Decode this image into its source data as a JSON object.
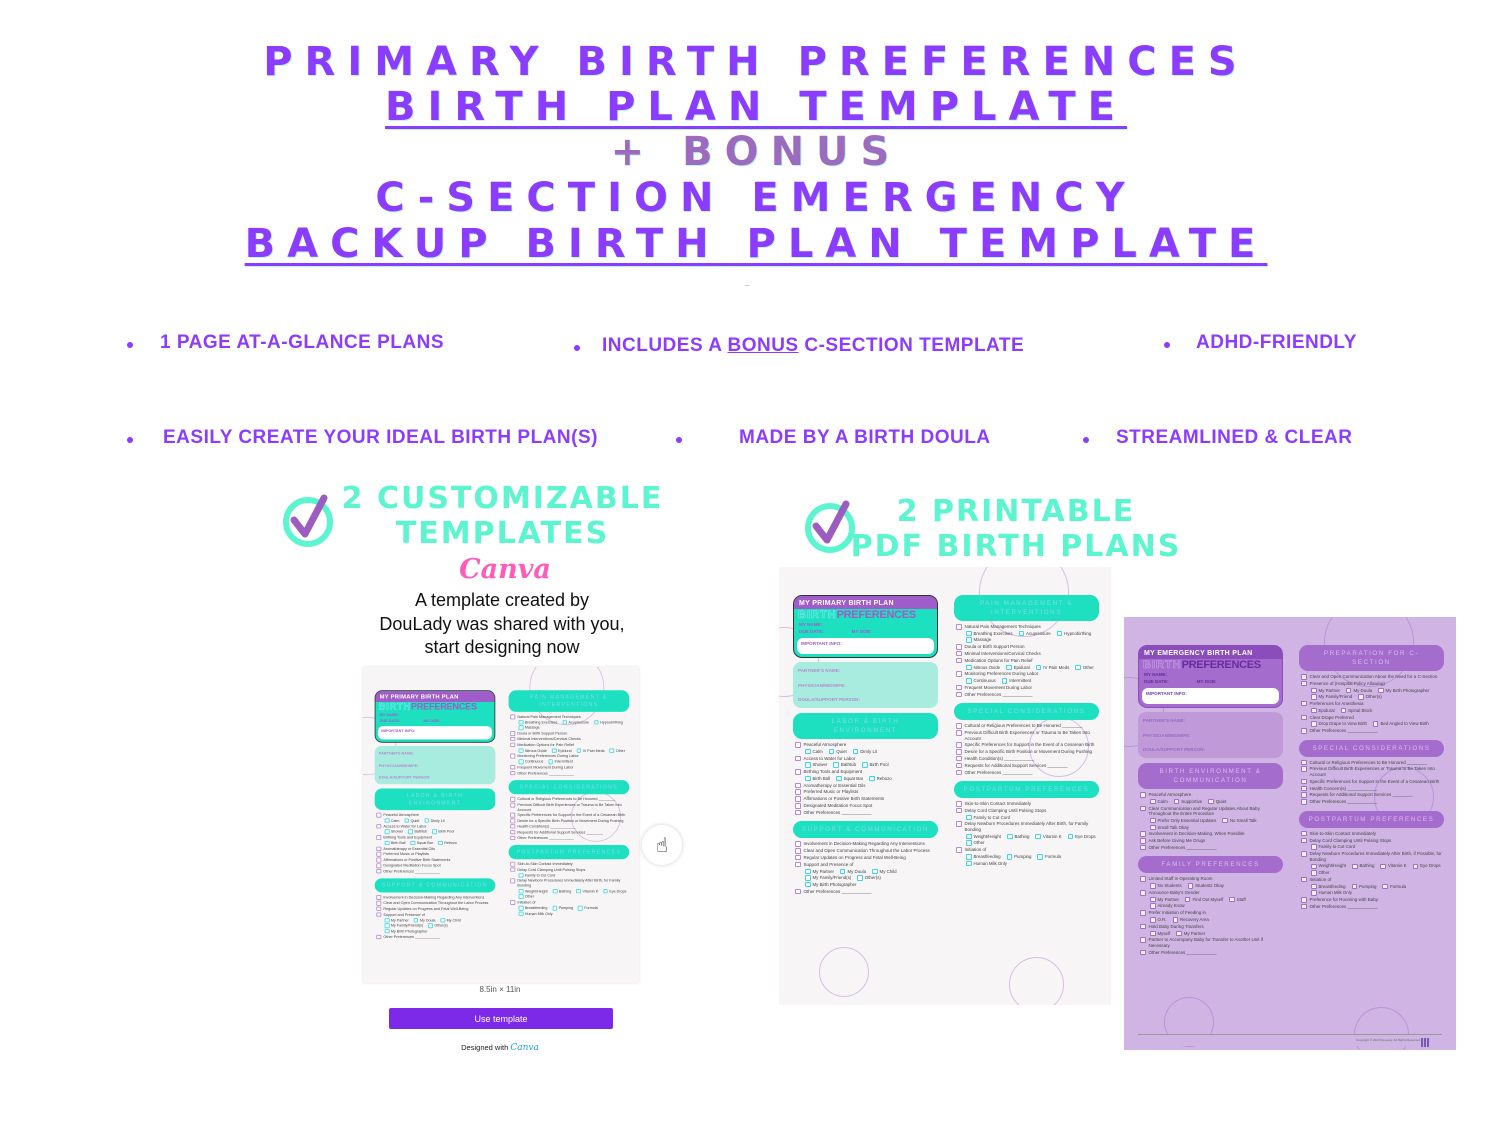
{
  "headline": {
    "line1": "PRIMARY BIRTH PREFERENCES",
    "line2": "BIRTH PLAN TEMPLATE",
    "line3": "+ BONUS",
    "line4": "C-SECTION EMERGENCY",
    "line5": "BACKUP BIRTH PLAN TEMPLATE",
    "separator": "–"
  },
  "features_row1": [
    {
      "text": "1 PAGE AT-A-GLANCE PLANS"
    },
    {
      "pre": "INCLUDES A ",
      "link": "BONUS",
      "post": " C-SECTION TEMPLATE"
    },
    {
      "text": "ADHD-FRIENDLY"
    }
  ],
  "features_row2": [
    {
      "text": "EASILY CREATE YOUR IDEAL BIRTH PLAN(S)"
    },
    {
      "text": "MADE BY A BIRTH DOULA"
    },
    {
      "text": "STREAMLINED & CLEAR"
    }
  ],
  "left_panel": {
    "heading_line1": "2 CUSTOMIZABLE",
    "heading_line2": "TEMPLATES",
    "brand": "Canva",
    "share_line1": "A template created by",
    "share_line2": "DouLady was shared with you,",
    "share_line3": "start designing now",
    "dimensions": "8.5in × 11in",
    "button_label": "Use template",
    "designed_with": "Designed with",
    "designed_brand": "Canva"
  },
  "right_panel": {
    "heading_line1": "2 PRINTABLE",
    "heading_line2": "PDF BIRTH PLANS"
  },
  "colors": {
    "headline_purple": "#8c3cff",
    "bonus_purple": "#9d6bbd",
    "feature_teal": "#5cf5d0",
    "canva_pink": "#ff5cb8",
    "button_purple": "#7d2ae8",
    "sheet_teal": "#1de0c0",
    "sheet_purple": "#a46ccc"
  },
  "icons": {
    "feature_check": "check-circle-icon",
    "cursor": "hand-pointer-icon"
  },
  "primary_plan": {
    "plan_title": "MY PRIMARY BIRTH PLAN",
    "birth_word": "BIRTH",
    "preferences_word": "PREFERENCES",
    "my_name": "MY NAME:",
    "due_date": "DUE DATE:",
    "my_dob": "MY DOB:",
    "important_info": "IMPORTANT INFO:",
    "contacts": [
      "PARTNER'S NAME:",
      "PHYSICIAN/MIDWIFE:",
      "DOULA/SUPPORT PERSON:"
    ],
    "left_sections": [
      {
        "title": "Labor & Birth Environment",
        "items": [
          {
            "label": "Peaceful Atmosphere",
            "options": [
              "Calm",
              "Quiet",
              "Dimly Lit"
            ]
          },
          {
            "label": "Access to Water for Labor",
            "options": [
              "Shower",
              "Bathtub",
              "Birth Pool"
            ]
          },
          {
            "label": "Birthing Tools and Equipment",
            "options": [
              "Birth Ball",
              "Squat Bar",
              "Rebozo"
            ]
          },
          {
            "label": "Aromatherapy or Essential Oils"
          },
          {
            "label": "Preferred Music or Playlists"
          },
          {
            "label": "Affirmations or Positive Birth Statements"
          },
          {
            "label": "Designated Meditation Focus Spot"
          },
          {
            "label": "Other Preferences ____________"
          }
        ]
      },
      {
        "title": "Support & Communication",
        "items": [
          {
            "label": "Involvement in Decision-Making Regarding Any Interventions"
          },
          {
            "label": "Clear and Open Communication Throughout the Labor Process"
          },
          {
            "label": "Regular Updates on Progress and Fetal Well-Being"
          },
          {
            "label": "Support and Presence of",
            "options": [
              "My Partner",
              "My Doula",
              "My Child",
              "My Family/Friend(s)",
              "Other(s)",
              "My Birth Photographer"
            ]
          },
          {
            "label": "Other Preferences ____________"
          }
        ]
      }
    ],
    "right_sections": [
      {
        "title": "Pain Management & Interventions",
        "items": [
          {
            "label": "Natural Pain Management Techniques",
            "options": [
              "Breathing Exercises",
              "Acupressure",
              "Hypnobirthing",
              "Massage"
            ]
          },
          {
            "label": "Doula or Birth Support Person"
          },
          {
            "label": "Minimal Interventions/Cervical Checks"
          },
          {
            "label": "Medication Options for Pain Relief",
            "options": [
              "Nitrous Oxide",
              "Epidural",
              "IV Pain Meds",
              "Other"
            ]
          },
          {
            "label": "Monitoring Preferences During Labor",
            "options": [
              "Continuous",
              "Intermittent"
            ]
          },
          {
            "label": "Frequent Movement During Labor"
          },
          {
            "label": "Other Preferences ____________"
          }
        ]
      },
      {
        "title": "Special Considerations",
        "items": [
          {
            "label": "Cultural or Religious Preferences to Be Honored ________"
          },
          {
            "label": "Previous Difficult Birth Experiences or Trauma to Be Taken Into Account"
          },
          {
            "label": "Specific Preferences for Support in the Event of a Cesarean Birth"
          },
          {
            "label": "Desire for a Specific Birth Position or Movement During Pushing"
          },
          {
            "label": "Health Condition(s) ____________"
          },
          {
            "label": "Requests for Additional Support Services ________"
          },
          {
            "label": "Other Preferences ____________"
          }
        ]
      },
      {
        "title": "Postpartum Preferences",
        "items": [
          {
            "label": "Skin-to-Skin Contact Immediately"
          },
          {
            "label": "Delay Cord Clamping Until Pulsing Stops",
            "options": [
              "Family to Cut Cord"
            ]
          },
          {
            "label": "Delay Newborn Procedures Immediately After Birth, for Family Bonding",
            "options": [
              "Weight/Height",
              "Bathing",
              "Vitamin K",
              "Eye Drops",
              "Other"
            ]
          },
          {
            "label": "Initiation of",
            "options": [
              "Breastfeeding",
              "Pumping",
              "Formula",
              "Human Milk Only"
            ]
          }
        ]
      }
    ]
  },
  "emergency_plan": {
    "plan_title": "MY EMERGENCY BIRTH PLAN",
    "birth_word": "BIRTH",
    "preferences_word": "PREFERENCES",
    "my_name": "MY NAME:",
    "due_date": "DUE DATE:",
    "my_dob": "MY DOB:",
    "important_info": "IMPORTANT INFO:",
    "contacts": [
      "PARTNER'S NAME:",
      "PHYSICIAN/MIDWIFE:",
      "DOULA/SUPPORT PERSON:"
    ],
    "left_sections": [
      {
        "title": "Birth Environment & Communication",
        "items": [
          {
            "label": "Peaceful Atmosphere",
            "options": [
              "Calm",
              "Supportive",
              "Quiet"
            ]
          },
          {
            "label": "Clear Communication and Regular Updates About Baby Throughout the Entire Procedure",
            "options": [
              "Prefer Only Essential Updates",
              "No Small Talk",
              "Small Talk Okay"
            ]
          },
          {
            "label": "Involvement in Decision-Making, When Possible"
          },
          {
            "label": "Ask Before Giving Me Drugs"
          },
          {
            "label": "Other Preferences ____________"
          }
        ]
      },
      {
        "title": "Family Preferences",
        "items": [
          {
            "label": "Limited Staff in Operating Room",
            "options": [
              "No Students",
              "Students Okay"
            ]
          },
          {
            "label": "Announce Baby's Gender",
            "options": [
              "My Partner",
              "Find Out Myself",
              "Staff",
              "Already Know"
            ]
          },
          {
            "label": "Prefer Initiation of Feeding in",
            "options": [
              "O.R.",
              "Recovery Area"
            ]
          },
          {
            "label": "Hold Baby During Transfers",
            "options": [
              "Myself",
              "My Partner"
            ]
          },
          {
            "label": "Partner to Accompany Baby for Transfer to Another Unit if Necessary"
          },
          {
            "label": "Other Preferences ____________"
          }
        ]
      }
    ],
    "right_sections": [
      {
        "title": "Preparation for C-Section",
        "items": [
          {
            "label": "Clear and Open Communication About the Need for a C-Section"
          },
          {
            "label": "Presence of (Hospital Policy Allowing)",
            "options": [
              "My Partner",
              "My Doula",
              "My Birth Photographer",
              "My Family/Friend",
              "Other(s)"
            ]
          },
          {
            "label": "Preferences for Anesthesia",
            "options": [
              "Epidural",
              "Spinal Block"
            ]
          },
          {
            "label": "Clear Drape Preferred",
            "options": [
              "Drop Drape to View Birth",
              "Bed Angled to View Birth"
            ]
          },
          {
            "label": "Other Preferences ____________"
          }
        ]
      },
      {
        "title": "Special Considerations",
        "items": [
          {
            "label": "Cultural or Religious Preferences to Be Honored ________"
          },
          {
            "label": "Previous Difficult Birth Experiences or Trauma to Be Taken Into Account"
          },
          {
            "label": "Specific Preferences for Support in the Event of a Cesarean Birth"
          },
          {
            "label": "Health Concern(s) ____________"
          },
          {
            "label": "Requests for Additional Support Services ________"
          },
          {
            "label": "Other Preferences ____________"
          }
        ]
      },
      {
        "title": "Postpartum Preferences",
        "items": [
          {
            "label": "Skin-to-Skin Contact Immediately"
          },
          {
            "label": "Delay Cord Clamping Until Pulsing Stops",
            "options": [
              "Family to Cut Cord"
            ]
          },
          {
            "label": "Delay Newborn Procedures Immediately After Birth, if Possible, for Bonding",
            "options": [
              "Weight/Height",
              "Bathing",
              "Vitamin K",
              "Eye Drops",
              "Other"
            ]
          },
          {
            "label": "Initiation of",
            "options": [
              "Breastfeeding",
              "Pumping",
              "Formula",
              "Human Milk Only"
            ]
          },
          {
            "label": "Preference for Rooming with Baby"
          },
          {
            "label": "Other Preferences ____________"
          }
        ]
      }
    ],
    "copyright": "Copyright © 2023 DouLady. All Rights Reserved"
  }
}
